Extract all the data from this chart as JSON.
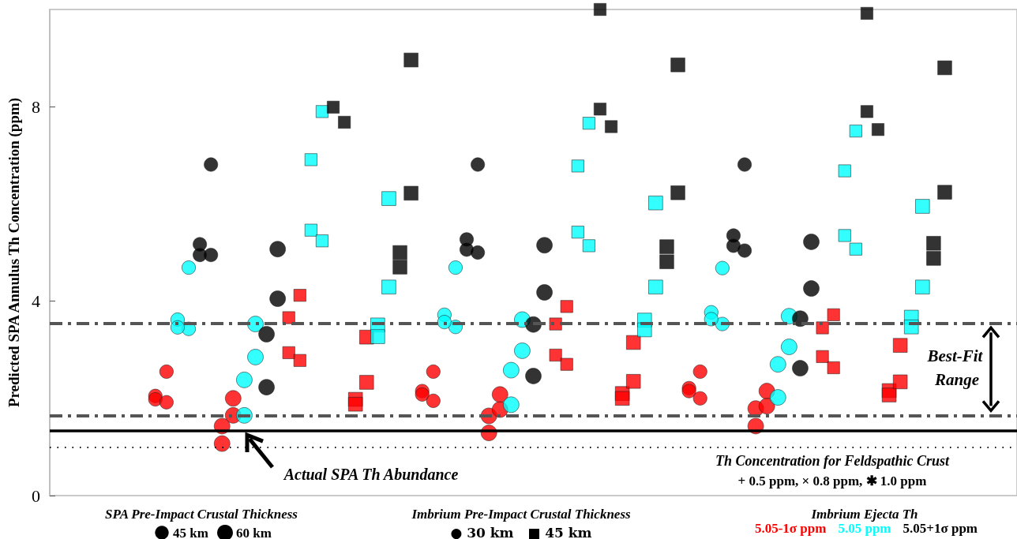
{
  "chart_data": {
    "type": "bubble",
    "ylabel": "Predicted SPA Annulus Th Concentration (ppm)",
    "legend": "bottom right",
    "legend_title": "Imbrium Ejecta Th",
    "tick_labels": "y",
    "size_legend": [
      {
        "value": 45,
        "label": "45 km"
      },
      {
        "value": 60,
        "label": "60 km"
      }
    ],
    "categories": [
      null,
      null,
      null,
      null,
      null,
      null,
      null,
      null,
      null,
      null,
      null,
      null,
      null,
      null,
      null,
      null,
      null,
      null,
      null,
      null,
      null,
      null,
      null,
      null,
      null,
      null,
      null,
      null,
      null,
      null,
      null,
      null,
      null,
      null,
      null,
      null,
      null,
      null,
      null,
      null,
      null,
      null,
      null,
      null,
      null,
      null,
      null,
      null,
      null,
      null,
      null,
      null,
      null,
      null,
      null,
      null,
      null,
      null,
      null,
      null,
      null,
      null,
      null,
      null,
      null,
      null,
      null,
      null,
      null,
      null,
      null,
      null,
      null,
      null,
      null,
      null,
      null,
      null,
      null,
      null,
      null,
      null,
      null,
      null,
      null,
      null,
      null
    ],
    "ylim": [
      0,
      10
    ],
    "yticks": [
      0,
      4,
      8
    ],
    "ref_lines": [
      {
        "axis": "y",
        "value": 3.55,
        "color": "#555555",
        "line_style": "dashed"
      },
      {
        "axis": "y",
        "value": 1.65,
        "color": "#555555",
        "line_style": "dashed"
      },
      {
        "axis": "y",
        "value": 1.33,
        "color": "#000000",
        "line_style": "solid"
      },
      {
        "axis": "y",
        "value": 1.0,
        "color": "#000000",
        "line_style": "dotted"
      }
    ],
    "annotations": [
      {
        "text": "Actual SPA Th Abundance",
        "y": 1.33
      },
      "Best-Fit Range",
      "Th Concentration for Feldspathic Crust",
      "+ 0.5 ppm, × 0.8 ppm, ✱ 1.0 ppm",
      "SPA Pre-Impact Crustal Thickness",
      "Imbrium Pre-Impact Crustal Thickness",
      "● 30 km   ■ 45 km"
    ],
    "series": [
      {
        "name": "5.05-1σ ppm",
        "color": "#ff0000",
        "marker": "circle",
        "values": [
          null,
          null,
          null,
          null,
          null,
          null,
          null,
          null,
          null,
          2.05,
          2.55,
          null,
          null,
          null,
          null,
          1.43,
          2.0,
          null,
          null,
          null,
          null,
          null,
          null,
          null,
          null,
          null,
          null,
          null,
          null,
          null,
          null,
          null,
          null,
          2.15,
          2.55,
          null,
          null,
          null,
          null,
          1.64,
          2.08,
          null,
          null,
          null,
          null,
          null,
          null,
          null,
          null,
          null,
          null,
          null,
          null,
          null,
          null,
          null,
          null,
          2.21,
          2.55,
          null,
          null,
          null,
          null,
          1.79,
          2.15,
          null,
          null,
          null,
          null,
          null,
          null,
          null,
          null,
          null,
          null,
          null,
          null,
          null,
          null,
          null,
          null,
          null,
          null,
          null,
          null,
          null,
          null
        ],
        "sizes": [
          null,
          null,
          null,
          null,
          null,
          null,
          null,
          null,
          null,
          45,
          45,
          null,
          null,
          null,
          null,
          60,
          60,
          null,
          null,
          null,
          null,
          null,
          null,
          null,
          null,
          null,
          null,
          null,
          null,
          null,
          null,
          null,
          null,
          45,
          45,
          null,
          null,
          null,
          null,
          60,
          60,
          null,
          null,
          null,
          null,
          null,
          null,
          null,
          null,
          null,
          null,
          null,
          null,
          null,
          null,
          null,
          null,
          45,
          45,
          null,
          null,
          null,
          null,
          60,
          60,
          null,
          null,
          null,
          null,
          null,
          null,
          null,
          null,
          null,
          null,
          null,
          null,
          null,
          null,
          null,
          null,
          null,
          null,
          null,
          null,
          null,
          null
        ]
      },
      {
        "color": "#ff0000",
        "marker": "circle",
        "values": [
          null,
          null,
          null,
          null,
          null,
          null,
          null,
          null,
          null,
          1.98,
          1.92,
          null,
          null,
          null,
          null,
          1.07,
          1.65,
          null,
          null,
          null,
          null,
          null,
          null,
          null,
          null,
          null,
          null,
          null,
          null,
          null,
          null,
          null,
          null,
          2.08,
          1.95,
          null,
          null,
          null,
          null,
          1.29,
          1.77,
          null,
          null,
          null,
          null,
          null,
          null,
          null,
          null,
          null,
          null,
          null,
          null,
          null,
          null,
          null,
          null,
          2.15,
          2.0,
          null,
          null,
          null,
          null,
          1.43,
          1.84,
          null,
          null,
          null,
          null,
          null,
          null,
          null,
          null,
          null,
          null,
          null,
          null,
          null,
          null,
          null,
          null,
          null,
          null,
          null,
          null,
          null,
          null
        ],
        "sizes": [
          null,
          null,
          null,
          null,
          null,
          null,
          null,
          null,
          null,
          45,
          45,
          null,
          null,
          null,
          null,
          60,
          60,
          null,
          null,
          null,
          null,
          null,
          null,
          null,
          null,
          null,
          null,
          null,
          null,
          null,
          null,
          null,
          null,
          45,
          45,
          null,
          null,
          null,
          null,
          60,
          60,
          null,
          null,
          null,
          null,
          null,
          null,
          null,
          null,
          null,
          null,
          null,
          null,
          null,
          null,
          null,
          null,
          45,
          45,
          null,
          null,
          null,
          null,
          60,
          60,
          null,
          null,
          null,
          null,
          null,
          null,
          null,
          null,
          null,
          null,
          null,
          null,
          null,
          null,
          null,
          null,
          null,
          null,
          null,
          null,
          null,
          null
        ]
      },
      {
        "name": "5.05 ppm",
        "color": "#00ffff",
        "marker": "circle",
        "values": [
          null,
          null,
          null,
          null,
          null,
          null,
          null,
          null,
          null,
          null,
          null,
          3.62,
          3.43,
          null,
          null,
          null,
          null,
          1.65,
          3.53,
          null,
          null,
          null,
          null,
          null,
          null,
          null,
          null,
          null,
          null,
          null,
          null,
          null,
          null,
          null,
          null,
          3.72,
          3.47,
          null,
          null,
          null,
          null,
          1.87,
          3.62,
          null,
          null,
          null,
          null,
          null,
          null,
          null,
          null,
          null,
          null,
          null,
          null,
          null,
          null,
          null,
          null,
          3.77,
          3.53,
          null,
          null,
          null,
          null,
          2.02,
          3.69,
          null,
          null,
          null,
          null,
          null,
          null,
          null,
          null,
          null,
          null,
          null,
          null,
          null,
          null,
          null,
          null,
          null,
          null,
          null,
          null
        ],
        "sizes": [
          null,
          null,
          null,
          null,
          null,
          null,
          null,
          null,
          null,
          null,
          null,
          45,
          45,
          null,
          null,
          null,
          null,
          60,
          60,
          null,
          null,
          null,
          null,
          null,
          null,
          null,
          null,
          null,
          null,
          null,
          null,
          null,
          null,
          null,
          null,
          45,
          45,
          null,
          null,
          null,
          null,
          60,
          60,
          null,
          null,
          null,
          null,
          null,
          null,
          null,
          null,
          null,
          null,
          null,
          null,
          null,
          null,
          null,
          null,
          45,
          45,
          null,
          null,
          null,
          null,
          60,
          60,
          null,
          null,
          null,
          null,
          null,
          null,
          null,
          null,
          null,
          null,
          null,
          null,
          null,
          null,
          null,
          null,
          null,
          null,
          null,
          null
        ]
      },
      {
        "color": "#00ffff",
        "marker": "circle",
        "values": [
          null,
          null,
          null,
          null,
          null,
          null,
          null,
          null,
          null,
          null,
          null,
          3.46,
          4.69,
          null,
          null,
          null,
          null,
          2.38,
          2.85,
          null,
          null,
          null,
          null,
          null,
          null,
          null,
          null,
          null,
          null,
          null,
          null,
          null,
          null,
          null,
          null,
          3.57,
          4.69,
          null,
          null,
          null,
          null,
          2.58,
          2.98,
          null,
          null,
          null,
          null,
          null,
          null,
          null,
          null,
          null,
          null,
          null,
          null,
          null,
          null,
          null,
          null,
          3.63,
          4.68,
          null,
          null,
          null,
          null,
          2.7,
          3.06,
          null,
          null,
          null,
          null,
          null,
          null,
          null,
          null,
          null,
          null,
          null,
          null,
          null,
          null,
          null,
          null,
          null,
          null,
          null,
          null
        ],
        "sizes": [
          null,
          null,
          null,
          null,
          null,
          null,
          null,
          null,
          null,
          null,
          null,
          45,
          45,
          null,
          null,
          null,
          null,
          60,
          60,
          null,
          null,
          null,
          null,
          null,
          null,
          null,
          null,
          null,
          null,
          null,
          null,
          null,
          null,
          null,
          null,
          45,
          45,
          null,
          null,
          null,
          null,
          60,
          60,
          null,
          null,
          null,
          null,
          null,
          null,
          null,
          null,
          null,
          null,
          null,
          null,
          null,
          null,
          null,
          null,
          45,
          45,
          null,
          null,
          null,
          null,
          60,
          60,
          null,
          null,
          null,
          null,
          null,
          null,
          null,
          null,
          null,
          null,
          null,
          null,
          null,
          null,
          null,
          null,
          null,
          null,
          null,
          null
        ]
      },
      {
        "name": "5.05+1σ ppm",
        "color": "#000000",
        "marker": "circle",
        "values": [
          null,
          null,
          null,
          null,
          null,
          null,
          null,
          null,
          null,
          null,
          null,
          null,
          null,
          5.17,
          4.95,
          null,
          null,
          null,
          null,
          3.32,
          4.05,
          null,
          null,
          null,
          null,
          null,
          null,
          null,
          null,
          null,
          null,
          null,
          null,
          null,
          null,
          null,
          null,
          5.27,
          5.0,
          null,
          null,
          null,
          null,
          3.52,
          4.18,
          null,
          null,
          null,
          null,
          null,
          null,
          null,
          null,
          null,
          null,
          null,
          null,
          null,
          null,
          null,
          null,
          5.35,
          5.04,
          null,
          null,
          null,
          null,
          3.64,
          4.26,
          null,
          null,
          null,
          null,
          null,
          null,
          null,
          null,
          null,
          null,
          null,
          null,
          null,
          null,
          null,
          null,
          null,
          null
        ],
        "sizes": [
          null,
          null,
          null,
          null,
          null,
          null,
          null,
          null,
          null,
          null,
          null,
          null,
          null,
          45,
          45,
          null,
          null,
          null,
          null,
          60,
          60,
          null,
          null,
          null,
          null,
          null,
          null,
          null,
          null,
          null,
          null,
          null,
          null,
          null,
          null,
          null,
          null,
          45,
          45,
          null,
          null,
          null,
          null,
          60,
          60,
          null,
          null,
          null,
          null,
          null,
          null,
          null,
          null,
          null,
          null,
          null,
          null,
          null,
          null,
          null,
          null,
          45,
          45,
          null,
          null,
          null,
          null,
          60,
          60,
          null,
          null,
          null,
          null,
          null,
          null,
          null,
          null,
          null,
          null,
          null,
          null,
          null,
          null,
          null,
          null,
          null,
          null
        ]
      },
      {
        "color": "#000000",
        "marker": "circle",
        "values": [
          null,
          null,
          null,
          null,
          null,
          null,
          null,
          null,
          null,
          null,
          null,
          null,
          null,
          4.95,
          6.81,
          null,
          null,
          null,
          null,
          2.23,
          5.07,
          null,
          null,
          null,
          null,
          null,
          null,
          null,
          null,
          null,
          null,
          null,
          null,
          null,
          null,
          null,
          null,
          5.06,
          6.81,
          null,
          null,
          null,
          null,
          2.46,
          5.15,
          null,
          null,
          null,
          null,
          null,
          null,
          null,
          null,
          null,
          null,
          null,
          null,
          null,
          null,
          null,
          null,
          5.14,
          6.81,
          null,
          null,
          null,
          null,
          2.62,
          5.22,
          null,
          null,
          null,
          null,
          null,
          null,
          null,
          null,
          null,
          null,
          null,
          null,
          null,
          null,
          null,
          null,
          null,
          null
        ],
        "sizes": [
          null,
          null,
          null,
          null,
          null,
          null,
          null,
          null,
          null,
          null,
          null,
          null,
          null,
          45,
          45,
          null,
          null,
          null,
          null,
          60,
          60,
          null,
          null,
          null,
          null,
          null,
          null,
          null,
          null,
          null,
          null,
          null,
          null,
          null,
          null,
          null,
          null,
          45,
          45,
          null,
          null,
          null,
          null,
          60,
          60,
          null,
          null,
          null,
          null,
          null,
          null,
          null,
          null,
          null,
          null,
          null,
          null,
          null,
          null,
          null,
          null,
          45,
          45,
          null,
          null,
          null,
          null,
          60,
          60,
          null,
          null,
          null,
          null,
          null,
          null,
          null,
          null,
          null,
          null,
          null,
          null,
          null,
          null,
          null,
          null,
          null,
          null
        ]
      },
      {
        "color": "#ff0000",
        "marker": "square",
        "values": [
          null,
          null,
          null,
          null,
          null,
          null,
          null,
          null,
          null,
          null,
          null,
          null,
          null,
          null,
          null,
          null,
          null,
          null,
          null,
          null,
          null,
          3.66,
          4.12,
          null,
          null,
          null,
          null,
          1.98,
          3.26,
          null,
          null,
          null,
          null,
          null,
          null,
          null,
          null,
          null,
          null,
          null,
          null,
          null,
          null,
          null,
          null,
          3.53,
          3.89,
          null,
          null,
          null,
          null,
          2.1,
          3.15,
          null,
          null,
          null,
          null,
          null,
          null,
          null,
          null,
          null,
          null,
          null,
          null,
          null,
          null,
          null,
          null,
          3.45,
          3.72,
          null,
          null,
          null,
          null,
          2.16,
          3.09,
          null,
          null,
          null,
          null,
          null,
          null,
          null,
          null,
          null,
          null
        ],
        "sizes": [
          null,
          null,
          null,
          null,
          null,
          null,
          null,
          null,
          null,
          null,
          null,
          null,
          null,
          null,
          null,
          null,
          null,
          null,
          null,
          null,
          null,
          45,
          45,
          null,
          null,
          null,
          null,
          60,
          60,
          null,
          null,
          null,
          null,
          null,
          null,
          null,
          null,
          null,
          null,
          null,
          null,
          null,
          null,
          null,
          null,
          45,
          45,
          null,
          null,
          null,
          null,
          60,
          60,
          null,
          null,
          null,
          null,
          null,
          null,
          null,
          null,
          null,
          null,
          null,
          null,
          null,
          null,
          null,
          null,
          45,
          45,
          null,
          null,
          null,
          null,
          60,
          60,
          null,
          null,
          null,
          null,
          null,
          null,
          null,
          null,
          null,
          null
        ]
      },
      {
        "color": "#ff0000",
        "marker": "square",
        "values": [
          null,
          null,
          null,
          null,
          null,
          null,
          null,
          null,
          null,
          null,
          null,
          null,
          null,
          null,
          null,
          null,
          null,
          null,
          null,
          null,
          null,
          2.94,
          2.78,
          null,
          null,
          null,
          null,
          1.88,
          2.33,
          null,
          null,
          null,
          null,
          null,
          null,
          null,
          null,
          null,
          null,
          null,
          null,
          null,
          null,
          null,
          null,
          2.89,
          2.7,
          null,
          null,
          null,
          null,
          2.0,
          2.35,
          null,
          null,
          null,
          null,
          null,
          null,
          null,
          null,
          null,
          null,
          null,
          null,
          null,
          null,
          null,
          null,
          2.86,
          2.63,
          null,
          null,
          null,
          null,
          2.07,
          2.34,
          null,
          null,
          null,
          null,
          null,
          null,
          null,
          null,
          null,
          null
        ],
        "sizes": [
          null,
          null,
          null,
          null,
          null,
          null,
          null,
          null,
          null,
          null,
          null,
          null,
          null,
          null,
          null,
          null,
          null,
          null,
          null,
          null,
          null,
          45,
          45,
          null,
          null,
          null,
          null,
          60,
          60,
          null,
          null,
          null,
          null,
          null,
          null,
          null,
          null,
          null,
          null,
          null,
          null,
          null,
          null,
          null,
          null,
          45,
          45,
          null,
          null,
          null,
          null,
          60,
          60,
          null,
          null,
          null,
          null,
          null,
          null,
          null,
          null,
          null,
          null,
          null,
          null,
          null,
          null,
          null,
          null,
          45,
          45,
          null,
          null,
          null,
          null,
          60,
          60,
          null,
          null,
          null,
          null,
          null,
          null,
          null,
          null,
          null,
          null
        ]
      },
      {
        "color": "#00ffff",
        "marker": "square",
        "values": [
          null,
          null,
          null,
          null,
          null,
          null,
          null,
          null,
          null,
          null,
          null,
          null,
          null,
          null,
          null,
          null,
          null,
          null,
          null,
          null,
          null,
          null,
          null,
          5.46,
          5.24,
          null,
          null,
          null,
          null,
          3.51,
          6.11,
          null,
          null,
          null,
          null,
          null,
          null,
          null,
          null,
          null,
          null,
          null,
          null,
          null,
          null,
          null,
          null,
          5.42,
          5.14,
          null,
          null,
          null,
          null,
          3.61,
          6.02,
          null,
          null,
          null,
          null,
          null,
          null,
          null,
          null,
          null,
          null,
          null,
          null,
          null,
          null,
          null,
          null,
          5.35,
          5.07,
          null,
          null,
          null,
          null,
          3.67,
          5.95,
          null,
          null,
          null,
          null,
          null,
          null,
          null,
          null
        ],
        "sizes": [
          null,
          null,
          null,
          null,
          null,
          null,
          null,
          null,
          null,
          null,
          null,
          null,
          null,
          null,
          null,
          null,
          null,
          null,
          null,
          null,
          null,
          null,
          null,
          45,
          45,
          null,
          null,
          null,
          null,
          60,
          60,
          null,
          null,
          null,
          null,
          null,
          null,
          null,
          null,
          null,
          null,
          null,
          null,
          null,
          null,
          null,
          null,
          45,
          45,
          null,
          null,
          null,
          null,
          60,
          60,
          null,
          null,
          null,
          null,
          null,
          null,
          null,
          null,
          null,
          null,
          null,
          null,
          null,
          null,
          null,
          null,
          45,
          45,
          null,
          null,
          null,
          null,
          60,
          60,
          null,
          null,
          null,
          null,
          null,
          null,
          null,
          null
        ]
      },
      {
        "color": "#00ffff",
        "marker": "square",
        "values": [
          null,
          null,
          null,
          null,
          null,
          null,
          null,
          null,
          null,
          null,
          null,
          null,
          null,
          null,
          null,
          null,
          null,
          null,
          null,
          null,
          null,
          null,
          null,
          6.91,
          7.9,
          null,
          null,
          null,
          null,
          3.27,
          4.29,
          null,
          null,
          null,
          null,
          null,
          null,
          null,
          null,
          null,
          null,
          null,
          null,
          null,
          null,
          null,
          null,
          6.78,
          7.66,
          null,
          null,
          null,
          null,
          3.41,
          4.29,
          null,
          null,
          null,
          null,
          null,
          null,
          null,
          null,
          null,
          null,
          null,
          null,
          null,
          null,
          null,
          null,
          6.68,
          7.5,
          null,
          null,
          null,
          null,
          3.47,
          4.29,
          null,
          null,
          null,
          null,
          null,
          null,
          null,
          null
        ],
        "sizes": [
          null,
          null,
          null,
          null,
          null,
          null,
          null,
          null,
          null,
          null,
          null,
          null,
          null,
          null,
          null,
          null,
          null,
          null,
          null,
          null,
          null,
          null,
          null,
          45,
          45,
          null,
          null,
          null,
          null,
          60,
          60,
          null,
          null,
          null,
          null,
          null,
          null,
          null,
          null,
          null,
          null,
          null,
          null,
          null,
          null,
          null,
          null,
          45,
          45,
          null,
          null,
          null,
          null,
          60,
          60,
          null,
          null,
          null,
          null,
          null,
          null,
          null,
          null,
          null,
          null,
          null,
          null,
          null,
          null,
          null,
          null,
          45,
          45,
          null,
          null,
          null,
          null,
          60,
          60,
          null,
          null,
          null,
          null,
          null,
          null,
          null,
          null
        ]
      },
      {
        "color": "#000000",
        "marker": "square",
        "values": [
          null,
          null,
          null,
          null,
          null,
          null,
          null,
          null,
          null,
          null,
          null,
          null,
          null,
          null,
          null,
          null,
          null,
          null,
          null,
          null,
          null,
          null,
          null,
          null,
          null,
          7.99,
          7.68,
          null,
          null,
          null,
          null,
          5.0,
          6.22,
          null,
          null,
          null,
          null,
          null,
          null,
          null,
          null,
          null,
          null,
          null,
          null,
          null,
          null,
          null,
          null,
          10.0,
          7.59,
          null,
          null,
          null,
          null,
          5.12,
          6.23,
          null,
          null,
          null,
          null,
          null,
          null,
          null,
          null,
          null,
          null,
          null,
          null,
          null,
          null,
          null,
          null,
          9.92,
          7.53,
          null,
          null,
          null,
          null,
          5.19,
          6.24,
          null,
          null,
          null,
          null,
          null,
          null
        ],
        "sizes": [
          null,
          null,
          null,
          null,
          null,
          null,
          null,
          null,
          null,
          null,
          null,
          null,
          null,
          null,
          null,
          null,
          null,
          null,
          null,
          null,
          null,
          null,
          null,
          null,
          null,
          45,
          45,
          null,
          null,
          null,
          null,
          60,
          60,
          null,
          null,
          null,
          null,
          null,
          null,
          null,
          null,
          null,
          null,
          null,
          null,
          null,
          null,
          null,
          null,
          45,
          45,
          null,
          null,
          null,
          null,
          60,
          60,
          null,
          null,
          null,
          null,
          null,
          null,
          null,
          null,
          null,
          null,
          null,
          null,
          null,
          null,
          null,
          null,
          45,
          45,
          null,
          null,
          null,
          null,
          60,
          60,
          null,
          null,
          null,
          null,
          null,
          null
        ]
      },
      {
        "color": "#000000",
        "marker": "square",
        "values": [
          null,
          null,
          null,
          null,
          null,
          null,
          null,
          null,
          null,
          null,
          null,
          null,
          null,
          null,
          null,
          null,
          null,
          null,
          null,
          null,
          null,
          null,
          null,
          null,
          null,
          null,
          null,
          null,
          null,
          null,
          null,
          4.7,
          8.96,
          null,
          null,
          null,
          null,
          null,
          null,
          null,
          null,
          null,
          null,
          null,
          null,
          null,
          null,
          null,
          null,
          7.95,
          null,
          null,
          null,
          null,
          null,
          4.81,
          8.86,
          null,
          null,
          null,
          null,
          null,
          null,
          null,
          null,
          null,
          null,
          null,
          null,
          null,
          null,
          null,
          null,
          7.9,
          null,
          null,
          null,
          null,
          null,
          4.88,
          8.8,
          null,
          null,
          null,
          null,
          null,
          null
        ],
        "sizes": [
          null,
          null,
          null,
          null,
          null,
          null,
          null,
          null,
          null,
          null,
          null,
          null,
          null,
          null,
          null,
          null,
          null,
          null,
          null,
          null,
          null,
          null,
          null,
          null,
          null,
          null,
          null,
          null,
          null,
          null,
          null,
          60,
          60,
          null,
          null,
          null,
          null,
          null,
          null,
          null,
          null,
          null,
          null,
          null,
          null,
          null,
          null,
          null,
          null,
          45,
          null,
          null,
          null,
          null,
          null,
          60,
          60,
          null,
          null,
          null,
          null,
          null,
          null,
          null,
          null,
          null,
          null,
          null,
          null,
          null,
          null,
          null,
          null,
          45,
          null,
          null,
          null,
          null,
          null,
          60,
          60,
          null,
          null,
          null,
          null,
          null,
          null
        ]
      }
    ]
  }
}
